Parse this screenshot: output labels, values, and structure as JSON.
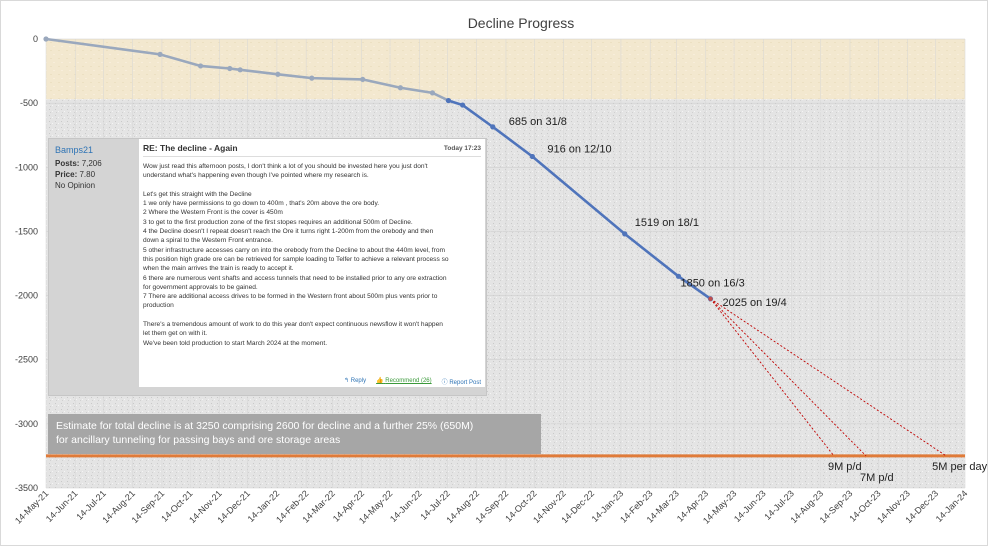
{
  "chart_data": {
    "type": "line",
    "title": "Decline Progress",
    "xlabel": "",
    "ylabel": "",
    "ylim": [
      -3500,
      0
    ],
    "yticks": [
      0,
      -500,
      -1000,
      -1500,
      -2000,
      -2500,
      -3000,
      -3500
    ],
    "xlim": [
      "2021-05-14",
      "2024-01-14"
    ],
    "xticks": [
      "14-May-21",
      "14-Jun-21",
      "14-Jul-21",
      "14-Aug-21",
      "14-Sep-21",
      "14-Oct-21",
      "14-Nov-21",
      "14-Dec-21",
      "14-Jan-22",
      "14-Feb-22",
      "14-Mar-22",
      "14-Apr-22",
      "14-May-22",
      "14-Jun-22",
      "14-Jul-22",
      "14-Aug-22",
      "14-Sep-22",
      "14-Oct-22",
      "14-Nov-22",
      "14-Dec-22",
      "14-Jan-23",
      "14-Feb-23",
      "14-Mar-23",
      "14-Apr-23",
      "14-May-23",
      "14-Jun-23",
      "14-Jul-23",
      "14-Aug-23",
      "14-Sep-23",
      "14-Oct-23",
      "14-Nov-23",
      "14-Dec-23",
      "14-Jan-24"
    ],
    "background_bands": [
      {
        "from": 0,
        "to": -470,
        "color": "#f2e7cf"
      },
      {
        "from": -470,
        "to": -3500,
        "color": "#e6e6e6"
      }
    ],
    "series": [
      {
        "color": "#9aa8bd",
        "x": [
          "2021-05-14",
          "2021-09-12",
          "2021-10-25",
          "2021-11-25",
          "2021-12-06",
          "2022-01-15",
          "2022-02-20",
          "2022-04-15",
          "2022-05-25",
          "2022-06-28",
          "2022-07-15"
        ],
        "y": [
          0,
          -120,
          -210,
          -230,
          -240,
          -275,
          -305,
          -315,
          -380,
          -420,
          -480
        ]
      },
      {
        "color": "#4f74bb",
        "x": [
          "2022-07-15",
          "2022-07-30",
          "2022-08-31",
          "2022-10-12",
          "2023-01-18",
          "2023-03-16",
          "2023-04-19"
        ],
        "y": [
          -480,
          -515,
          -685,
          -916,
          -1519,
          -1850,
          -2025
        ]
      }
    ],
    "projections": [
      {
        "label": "9M p/d",
        "color": "#c00000",
        "x": [
          "2023-04-19",
          "2023-08-28"
        ],
        "y": [
          -2025,
          -3250
        ]
      },
      {
        "label": "7M p/d",
        "color": "#c00000",
        "x": [
          "2023-04-19",
          "2023-10-01"
        ],
        "y": [
          -2025,
          -3250
        ]
      },
      {
        "label": "5M per day",
        "color": "#c00000",
        "x": [
          "2023-04-19",
          "2023-12-25"
        ],
        "y": [
          -2025,
          -3250
        ]
      }
    ],
    "reference_line": {
      "y": -3250,
      "color": "#e07b39"
    },
    "annotations": [
      {
        "text": "685 on 31/8",
        "x": "2022-08-31",
        "y": -685
      },
      {
        "text": "916 on 12/10",
        "x": "2022-10-12",
        "y": -916
      },
      {
        "text": "1519 on 18/1",
        "x": "2023-01-18",
        "y": -1519
      },
      {
        "text": "1850 on 16/3",
        "x": "2023-03-16",
        "y": -1850
      },
      {
        "text": "2025 on 19/4",
        "x": "2023-04-19",
        "y": -2025
      }
    ],
    "grid": true
  },
  "forum_post": {
    "username": "Bamps21",
    "posts_label": "Posts:",
    "posts_value": "7,206",
    "price_label": "Price:",
    "price_value": "7.80",
    "opinion": "No Opinion",
    "title": "RE: The decline - Again",
    "time": "Today 17:23",
    "lines": [
      "Wow just read this afternoon posts, I don't think a lot of you should be invested here you just don't",
      "understand what's happening even though I've pointed where my research is.",
      "",
      "Let's get this straight with the Decline",
      "1 we only have permissions to go down to 400m , that's 20m above the ore body.",
      "2 Where the Western Front is the cover is 450m",
      "3 to get to the first production zone of the first stopes requires an additional 500m of Decline.",
      "4 the Decline doesn't I repeat doesn't reach the Ore it turns right 1-200m from the orebody and then",
      "down a spiral to the Western Front entrance.",
      "5 other infrastructure accesses carry on into the orebody from the Decline to about the 440m level, from",
      "this position high grade ore can be retrieved for sample loading to Telfer to achieve a relevant process so",
      "when the main arrives the train is ready to accept it.",
      "6 there are numerous vent shafts and access tunnels that need to be installed prior to any ore extraction",
      "for government approvals to be gained.",
      "7 There are additional access drives to be formed in the Western front about 500m plus vents prior to",
      "production",
      "",
      "There's a tremendous amount of work to do this year don't expect continuous newsflow it won't happen",
      "let them get on with it.",
      "We've been told production to start March 2024 at the moment."
    ],
    "actions": {
      "reply": "Reply",
      "recommend": "Recommend (26)",
      "report": "Report Post"
    }
  },
  "estimate_note": {
    "line1": "Estimate for total decline is at 3250 comprising 2600 for decline and a further 25% (650M)",
    "line2": "for ancillary tunneling for passing bays and ore storage areas"
  }
}
